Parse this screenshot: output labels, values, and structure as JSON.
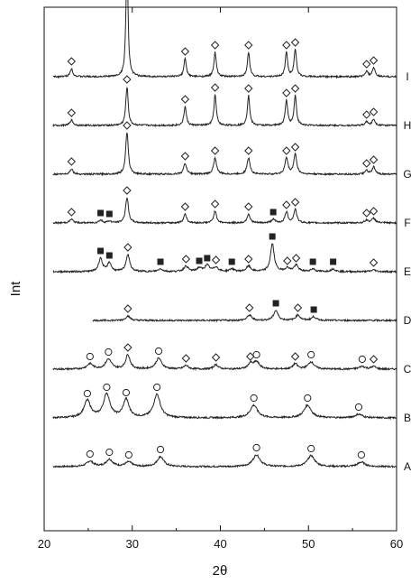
{
  "chart_data": {
    "type": "line",
    "xlabel": "2θ",
    "ylabel": "Int",
    "xlim": [
      20,
      60
    ],
    "x_ticks": [
      20,
      30,
      40,
      50,
      60
    ],
    "grid": false,
    "line_color": "#222222",
    "y_ticks_shown": false,
    "marker_legend": {
      "diamond": "◇",
      "circle": "○",
      "square": "■"
    },
    "series": [
      {
        "name": "A",
        "peaks": [
          {
            "two_theta": 25.2,
            "height": 0.6,
            "width": 0.45,
            "marker": "circle"
          },
          {
            "two_theta": 27.4,
            "height": 0.8,
            "width": 0.45,
            "marker": "circle"
          },
          {
            "two_theta": 29.6,
            "height": 0.5,
            "width": 0.45,
            "marker": "circle"
          },
          {
            "two_theta": 33.2,
            "height": 1.1,
            "width": 0.45,
            "marker": "circle"
          },
          {
            "two_theta": 44.1,
            "height": 1.3,
            "width": 0.5,
            "marker": "circle"
          },
          {
            "two_theta": 50.3,
            "height": 1.2,
            "width": 0.5,
            "marker": "circle"
          },
          {
            "two_theta": 56.0,
            "height": 0.5,
            "width": 0.5,
            "marker": "circle"
          }
        ]
      },
      {
        "name": "B",
        "peaks": [
          {
            "two_theta": 24.9,
            "height": 1.9,
            "width": 0.45,
            "marker": "circle"
          },
          {
            "two_theta": 27.1,
            "height": 2.6,
            "width": 0.45,
            "marker": "circle"
          },
          {
            "two_theta": 29.3,
            "height": 2.0,
            "width": 0.4,
            "marker": "circle"
          },
          {
            "two_theta": 32.8,
            "height": 2.6,
            "width": 0.45,
            "marker": "circle"
          },
          {
            "two_theta": 43.8,
            "height": 1.4,
            "width": 0.5,
            "marker": "circle"
          },
          {
            "two_theta": 49.9,
            "height": 1.4,
            "width": 0.5,
            "marker": "circle"
          },
          {
            "two_theta": 55.7,
            "height": 0.4,
            "width": 0.5,
            "marker": "circle"
          }
        ]
      },
      {
        "name": "C",
        "peaks": [
          {
            "two_theta": 25.2,
            "height": 0.6,
            "width": 0.4,
            "marker": "circle"
          },
          {
            "two_theta": 27.3,
            "height": 1.1,
            "width": 0.4,
            "marker": "circle"
          },
          {
            "two_theta": 29.5,
            "height": 1.6,
            "width": 0.3,
            "marker": "diamond"
          },
          {
            "two_theta": 33.0,
            "height": 1.2,
            "width": 0.4,
            "marker": "circle"
          },
          {
            "two_theta": 36.1,
            "height": 0.4,
            "width": 0.3,
            "marker": "diamond"
          },
          {
            "two_theta": 39.5,
            "height": 0.5,
            "width": 0.3,
            "marker": "diamond"
          },
          {
            "two_theta": 43.4,
            "height": 0.6,
            "width": 0.3,
            "marker": "diamond"
          },
          {
            "two_theta": 44.1,
            "height": 0.8,
            "width": 0.4,
            "marker": "circle"
          },
          {
            "two_theta": 48.5,
            "height": 0.6,
            "width": 0.3,
            "marker": "diamond"
          },
          {
            "two_theta": 50.3,
            "height": 0.8,
            "width": 0.4,
            "marker": "circle"
          },
          {
            "two_theta": 56.1,
            "height": 0.3,
            "width": 0.4,
            "marker": "circle"
          },
          {
            "two_theta": 57.4,
            "height": 0.3,
            "width": 0.3,
            "marker": "diamond"
          }
        ]
      },
      {
        "name": "D",
        "peaks": [
          {
            "two_theta": 29.5,
            "height": 0.5,
            "width": 0.3,
            "marker": "diamond"
          },
          {
            "two_theta": 43.3,
            "height": 0.6,
            "width": 0.3,
            "marker": "diamond"
          },
          {
            "two_theta": 46.3,
            "height": 1.1,
            "width": 0.3,
            "marker": "square"
          },
          {
            "two_theta": 48.8,
            "height": 0.6,
            "width": 0.3,
            "marker": "diamond"
          },
          {
            "two_theta": 50.6,
            "height": 0.4,
            "width": 0.3,
            "marker": "square"
          }
        ]
      },
      {
        "name": "E",
        "peaks": [
          {
            "two_theta": 26.4,
            "height": 1.5,
            "width": 0.25,
            "marker": "square"
          },
          {
            "two_theta": 27.4,
            "height": 1.0,
            "width": 0.25,
            "marker": "square"
          },
          {
            "two_theta": 29.5,
            "height": 1.9,
            "width": 0.25,
            "marker": "diamond"
          },
          {
            "two_theta": 33.2,
            "height": 0.3,
            "width": 0.3,
            "marker": "square"
          },
          {
            "two_theta": 36.1,
            "height": 0.6,
            "width": 0.3,
            "marker": "diamond"
          },
          {
            "two_theta": 37.6,
            "height": 0.4,
            "width": 0.3,
            "marker": "square"
          },
          {
            "two_theta": 38.5,
            "height": 0.7,
            "width": 0.3,
            "marker": "square"
          },
          {
            "two_theta": 39.5,
            "height": 0.5,
            "width": 0.3,
            "marker": "diamond"
          },
          {
            "two_theta": 41.3,
            "height": 0.3,
            "width": 0.3,
            "marker": "square"
          },
          {
            "two_theta": 43.2,
            "height": 0.6,
            "width": 0.3,
            "marker": "diamond"
          },
          {
            "two_theta": 45.9,
            "height": 3.1,
            "width": 0.25,
            "marker": "square"
          },
          {
            "two_theta": 47.6,
            "height": 0.4,
            "width": 0.3,
            "marker": "diamond"
          },
          {
            "two_theta": 48.6,
            "height": 0.7,
            "width": 0.3,
            "marker": "diamond"
          },
          {
            "two_theta": 50.5,
            "height": 0.3,
            "width": 0.3,
            "marker": "square"
          },
          {
            "two_theta": 52.8,
            "height": 0.3,
            "width": 0.3,
            "marker": "square"
          },
          {
            "two_theta": 57.4,
            "height": 0.2,
            "width": 0.3,
            "marker": "diamond"
          }
        ]
      },
      {
        "name": "F",
        "peaks": [
          {
            "two_theta": 23.1,
            "height": 0.4,
            "width": 0.25,
            "marker": "diamond"
          },
          {
            "two_theta": 26.4,
            "height": 0.3,
            "width": 0.25,
            "marker": "square"
          },
          {
            "two_theta": 27.4,
            "height": 0.2,
            "width": 0.25,
            "marker": "square"
          },
          {
            "two_theta": 29.4,
            "height": 2.8,
            "width": 0.2,
            "marker": "diamond"
          },
          {
            "two_theta": 36.0,
            "height": 1.0,
            "width": 0.2,
            "marker": "diamond"
          },
          {
            "two_theta": 39.4,
            "height": 1.3,
            "width": 0.2,
            "marker": "diamond"
          },
          {
            "two_theta": 43.2,
            "height": 1.0,
            "width": 0.2,
            "marker": "diamond"
          },
          {
            "two_theta": 46.0,
            "height": 0.4,
            "width": 0.25,
            "marker": "square"
          },
          {
            "two_theta": 47.5,
            "height": 1.2,
            "width": 0.2,
            "marker": "diamond"
          },
          {
            "two_theta": 48.5,
            "height": 1.5,
            "width": 0.2,
            "marker": "diamond"
          },
          {
            "two_theta": 56.6,
            "height": 0.3,
            "width": 0.25,
            "marker": "diamond"
          },
          {
            "two_theta": 57.4,
            "height": 0.5,
            "width": 0.25,
            "marker": "diamond"
          }
        ]
      },
      {
        "name": "G",
        "peaks": [
          {
            "two_theta": 23.1,
            "height": 0.6,
            "width": 0.2,
            "marker": "diamond"
          },
          {
            "two_theta": 29.4,
            "height": 4.6,
            "width": 0.18,
            "marker": "diamond"
          },
          {
            "two_theta": 36.0,
            "height": 1.2,
            "width": 0.2,
            "marker": "diamond"
          },
          {
            "two_theta": 39.4,
            "height": 1.8,
            "width": 0.2,
            "marker": "diamond"
          },
          {
            "two_theta": 43.2,
            "height": 1.8,
            "width": 0.2,
            "marker": "diamond"
          },
          {
            "two_theta": 47.5,
            "height": 1.8,
            "width": 0.2,
            "marker": "diamond"
          },
          {
            "two_theta": 48.5,
            "height": 2.2,
            "width": 0.2,
            "marker": "diamond"
          },
          {
            "two_theta": 56.6,
            "height": 0.4,
            "width": 0.2,
            "marker": "diamond"
          },
          {
            "two_theta": 57.4,
            "height": 0.8,
            "width": 0.2,
            "marker": "diamond"
          }
        ]
      },
      {
        "name": "H",
        "peaks": [
          {
            "two_theta": 23.1,
            "height": 0.6,
            "width": 0.2,
            "marker": "diamond"
          },
          {
            "two_theta": 29.4,
            "height": 4.3,
            "width": 0.16,
            "marker": "diamond"
          },
          {
            "two_theta": 36.0,
            "height": 2.1,
            "width": 0.16,
            "marker": "diamond"
          },
          {
            "two_theta": 39.4,
            "height": 3.4,
            "width": 0.16,
            "marker": "diamond"
          },
          {
            "two_theta": 43.2,
            "height": 3.3,
            "width": 0.16,
            "marker": "diamond"
          },
          {
            "two_theta": 47.5,
            "height": 2.8,
            "width": 0.16,
            "marker": "diamond"
          },
          {
            "two_theta": 48.5,
            "height": 3.3,
            "width": 0.16,
            "marker": "diamond"
          },
          {
            "two_theta": 56.6,
            "height": 0.4,
            "width": 0.2,
            "marker": "diamond"
          },
          {
            "two_theta": 57.4,
            "height": 0.7,
            "width": 0.2,
            "marker": "diamond"
          }
        ]
      },
      {
        "name": "I",
        "peaks": [
          {
            "two_theta": 23.1,
            "height": 0.9,
            "width": 0.18,
            "marker": "diamond"
          },
          {
            "two_theta": 29.4,
            "height": 12.9,
            "width": 0.14,
            "marker": "diamond"
          },
          {
            "two_theta": 36.0,
            "height": 2.0,
            "width": 0.16,
            "marker": "diamond"
          },
          {
            "two_theta": 39.4,
            "height": 2.7,
            "width": 0.16,
            "marker": "diamond"
          },
          {
            "two_theta": 43.2,
            "height": 2.7,
            "width": 0.16,
            "marker": "diamond"
          },
          {
            "two_theta": 47.5,
            "height": 2.7,
            "width": 0.16,
            "marker": "diamond"
          },
          {
            "two_theta": 48.5,
            "height": 3.0,
            "width": 0.16,
            "marker": "diamond"
          },
          {
            "two_theta": 56.6,
            "height": 0.6,
            "width": 0.18,
            "marker": "diamond"
          },
          {
            "two_theta": 57.4,
            "height": 1.0,
            "width": 0.18,
            "marker": "diamond"
          }
        ]
      }
    ]
  }
}
